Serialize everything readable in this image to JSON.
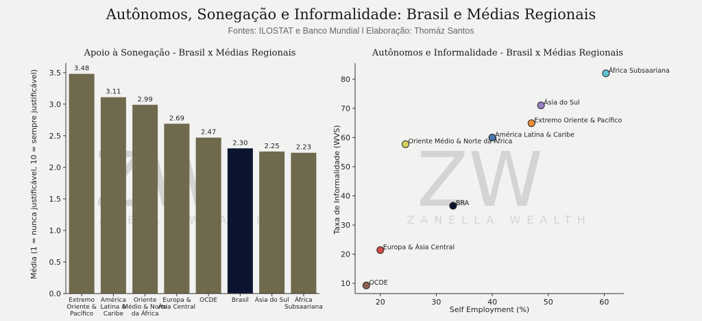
{
  "page": {
    "title": "Autônomos, Sonegação e Informalidade: Brasil e Médias Regionais",
    "subtitle": "Fontes: ILOSTAT e Banco Mundial l Elaboração: Thomáz Santos",
    "watermark": {
      "logo_text": "ZW",
      "brand_text": "ZANELLA WEALTH"
    }
  },
  "colors": {
    "bar": "#6f6a4d",
    "bar_highlight": "#0c1530",
    "background": "#f2f2f1"
  },
  "chart_data": [
    {
      "type": "bar",
      "title": "Apoio à Sonegação - Brasil x Médias Regionais",
      "ylabel": "Média (1 = nunca justificável, 10 = sempre justificável)",
      "xlabel": "",
      "categories": [
        [
          "Extremo",
          "Oriente &",
          "Pacífico"
        ],
        [
          "América",
          "Latina &",
          "Caribe"
        ],
        [
          "Oriente",
          "Médio & Norte",
          "da África"
        ],
        [
          "Europa &",
          "Ásia Central"
        ],
        [
          "OCDE"
        ],
        [
          "Brasil"
        ],
        [
          "Ásia do Sul"
        ],
        [
          "África",
          "Subsaariana"
        ]
      ],
      "values": [
        3.48,
        3.11,
        2.99,
        2.69,
        2.47,
        2.3,
        2.25,
        2.23
      ],
      "value_labels": [
        "3.48",
        "3.11",
        "2.99",
        "2.69",
        "2.47",
        "2.30",
        "2.25",
        "2.23"
      ],
      "highlight": "Brasil",
      "ylim": [
        0,
        3.65
      ],
      "yticks": [
        0.0,
        0.5,
        1.0,
        1.5,
        2.0,
        2.5,
        3.0,
        3.5
      ],
      "ytick_labels": [
        "0.0",
        "0.5",
        "1.0",
        "1.5",
        "2.0",
        "2.5",
        "3.0",
        "3.5"
      ],
      "grid": false
    },
    {
      "type": "scatter",
      "title": "Autônomos e Informalidade - Brasil x Médias Regionais",
      "xlabel": "Self Employment (%)",
      "ylabel": "Taxa de Informalidade (WVS)",
      "xlim": [
        15.5,
        63.5
      ],
      "ylim": [
        6.5,
        85.5
      ],
      "xticks": [
        20,
        30,
        40,
        50,
        60
      ],
      "yticks": [
        10,
        20,
        30,
        40,
        50,
        60,
        70,
        80
      ],
      "grid": false,
      "points": [
        {
          "label": "África Subsaariana",
          "x": 60.3,
          "y": 82.0,
          "color": "#5cc3cf"
        },
        {
          "label": "Ásia do Sul",
          "x": 48.7,
          "y": 71.0,
          "color": "#9b7fc4"
        },
        {
          "label": "Extremo Oriente & Pacífico",
          "x": 47.0,
          "y": 64.9,
          "color": "#f28d3a"
        },
        {
          "label": "América Latina & Caribe",
          "x": 40.0,
          "y": 60.0,
          "color": "#4a78ad"
        },
        {
          "label": "Oriente Médio & Norte da África",
          "x": 24.5,
          "y": 57.7,
          "color": "#d7d35a"
        },
        {
          "label": "BRA",
          "x": 33.0,
          "y": 36.6,
          "color": "#0c1530"
        },
        {
          "label": "Europa & Ásia Central",
          "x": 20.0,
          "y": 21.4,
          "color": "#d44a45"
        },
        {
          "label": "OCDE",
          "x": 17.5,
          "y": 9.3,
          "color": "#8d5f4f"
        }
      ]
    }
  ]
}
